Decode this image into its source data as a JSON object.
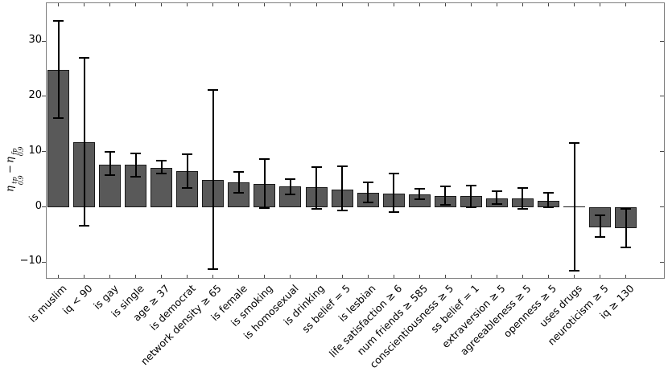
{
  "chart_data": {
    "type": "bar",
    "title": "",
    "xlabel": "",
    "ylabel": "eta^tp_0.9 - eta^fp_0.9",
    "ylabel_parts": {
      "eta": "η",
      "sup_left": "tp",
      "sub_left": "0.9",
      "minus": "−",
      "sup_right": "fp",
      "sub_right": "0.9"
    },
    "ylim": [
      -13,
      37
    ],
    "yticks": [
      30,
      20,
      10,
      0,
      -10
    ],
    "grid": false,
    "legend": null,
    "bar_color": "#595959",
    "bar_edge_color": "#1a1a1a",
    "error_bar_color": "#000000",
    "frame_color": "#7f7f7f",
    "categories": [
      "is muslim",
      "iq < 90",
      "is gay",
      "is single",
      "age ≥ 37",
      "is democrat",
      "network density ≥ 65",
      "is female",
      "is smoking",
      "is homosexual",
      "is drinking",
      "ss belief = 5",
      "is lesbian",
      "life satisfaction ≥ 6",
      "num friends ≥ 585",
      "conscientiousness ≥ 5",
      "ss belief = 1",
      "extraversion ≥ 5",
      "agreeableness ≥ 5",
      "openness ≥ 5",
      "uses drugs",
      "neuroticism ≥ 5",
      "iq ≥ 130"
    ],
    "values": [
      24.8,
      11.7,
      7.7,
      7.6,
      7.1,
      6.5,
      4.9,
      4.4,
      4.1,
      3.7,
      3.5,
      3.1,
      2.6,
      2.4,
      2.2,
      2.0,
      1.9,
      1.6,
      1.5,
      1.1,
      0.0,
      -3.7,
      -3.9
    ],
    "error_low": [
      16.0,
      -3.4,
      5.7,
      5.5,
      6.0,
      3.4,
      -11.2,
      2.5,
      -0.2,
      2.3,
      -0.3,
      -0.7,
      0.8,
      -0.9,
      1.4,
      0.4,
      0.0,
      0.5,
      -0.4,
      -0.1,
      -11.6,
      -5.5,
      -7.3
    ],
    "error_high": [
      33.6,
      26.9,
      10.0,
      9.7,
      8.3,
      9.6,
      21.2,
      6.4,
      8.6,
      5.0,
      7.2,
      7.3,
      4.4,
      6.0,
      3.3,
      3.7,
      3.9,
      2.9,
      3.4,
      2.5,
      11.6,
      -1.5,
      -0.3
    ]
  }
}
